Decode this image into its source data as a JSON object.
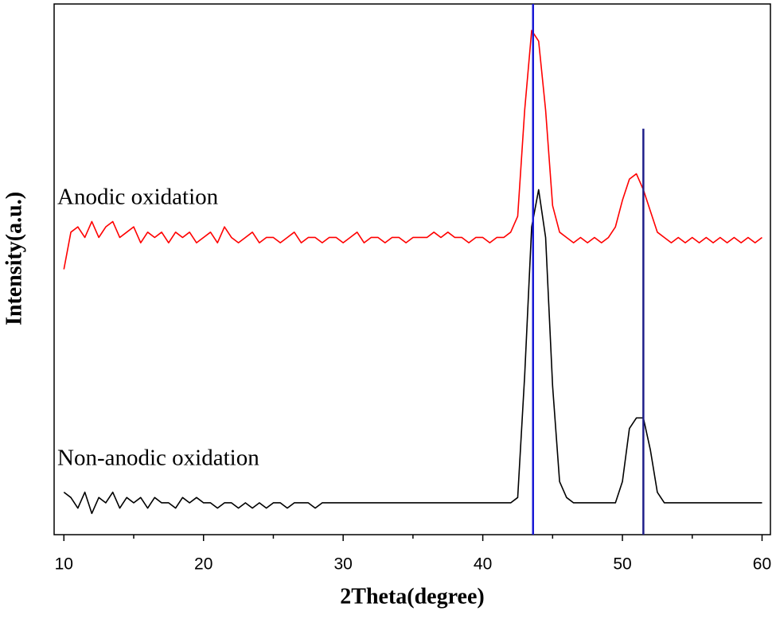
{
  "chart_data": {
    "type": "line",
    "xlabel": "2Theta(degree)",
    "ylabel": "Intensity(a.u.)",
    "xlim": [
      9.3,
      60.6
    ],
    "ylim": [
      0,
      100
    ],
    "xticks": [
      10,
      20,
      30,
      40,
      50,
      60
    ],
    "xminorticks": [
      15,
      25,
      35,
      45,
      55
    ],
    "annotations": [
      "Anodic oxidation",
      "Non-anodic oxidation"
    ],
    "reference_lines": [
      {
        "x": 43.6,
        "top": 100,
        "color": "#1a1ad6"
      },
      {
        "x": 51.5,
        "top": 76.5,
        "color": "#1f1f8a"
      }
    ],
    "x": [
      10,
      10.5,
      11,
      11.5,
      12,
      12.5,
      13,
      13.5,
      14,
      14.5,
      15,
      15.5,
      16,
      16.5,
      17,
      17.5,
      18,
      18.5,
      19,
      19.5,
      20,
      20.5,
      21,
      21.5,
      22,
      22.5,
      23,
      23.5,
      24,
      24.5,
      25,
      25.5,
      26,
      26.5,
      27,
      27.5,
      28,
      28.5,
      29,
      29.5,
      30,
      30.5,
      31,
      31.5,
      32,
      32.5,
      33,
      33.5,
      34,
      34.5,
      35,
      35.5,
      36,
      36.5,
      37,
      37.5,
      38,
      38.5,
      39,
      39.5,
      40,
      40.5,
      41,
      41.5,
      42,
      42.5,
      43,
      43.5,
      44,
      44.5,
      45,
      45.5,
      46,
      46.5,
      47,
      47.5,
      48,
      48.5,
      49,
      49.5,
      50,
      50.5,
      51,
      51.5,
      52,
      52.5,
      53,
      53.5,
      54,
      54.5,
      55,
      55.5,
      56,
      56.5,
      57,
      57.5,
      58,
      58.5,
      59,
      59.5,
      60
    ],
    "series": [
      {
        "color": "#ff0000",
        "values": [
          50,
          57,
          58,
          56,
          59,
          56,
          58,
          59,
          56,
          57,
          58,
          55,
          57,
          56,
          57,
          55,
          57,
          56,
          57,
          55,
          56,
          57,
          55,
          58,
          56,
          55,
          56,
          57,
          55,
          56,
          56,
          55,
          56,
          57,
          55,
          56,
          56,
          55,
          56,
          56,
          55,
          56,
          57,
          55,
          56,
          56,
          55,
          56,
          56,
          55,
          56,
          56,
          56,
          57,
          56,
          57,
          56,
          56,
          55,
          56,
          56,
          55,
          56,
          56,
          57,
          60,
          80,
          95,
          93,
          80,
          62,
          57,
          56,
          55,
          56,
          55,
          56,
          55,
          56,
          58,
          63,
          67,
          68,
          65,
          61,
          57,
          56,
          55,
          56,
          55,
          56,
          55,
          56,
          55,
          56,
          55,
          56,
          55,
          56,
          55,
          56
        ]
      },
      {
        "color": "#000000",
        "values": [
          8,
          7,
          5,
          8,
          4,
          7,
          6,
          8,
          5,
          7,
          6,
          7,
          5,
          7,
          6,
          6,
          5,
          7,
          6,
          7,
          6,
          6,
          5,
          6,
          6,
          5,
          6,
          5,
          6,
          5,
          6,
          6,
          5,
          6,
          6,
          6,
          5,
          6,
          6,
          6,
          6,
          6,
          6,
          6,
          6,
          6,
          6,
          6,
          6,
          6,
          6,
          6,
          6,
          6,
          6,
          6,
          6,
          6,
          6,
          6,
          6,
          6,
          6,
          6,
          6,
          7,
          30,
          58,
          65,
          56,
          28,
          10,
          7,
          6,
          6,
          6,
          6,
          6,
          6,
          6,
          10,
          20,
          22,
          22,
          16,
          8,
          6,
          6,
          6,
          6,
          6,
          6,
          6,
          6,
          6,
          6,
          6,
          6,
          6,
          6,
          6
        ]
      }
    ]
  }
}
